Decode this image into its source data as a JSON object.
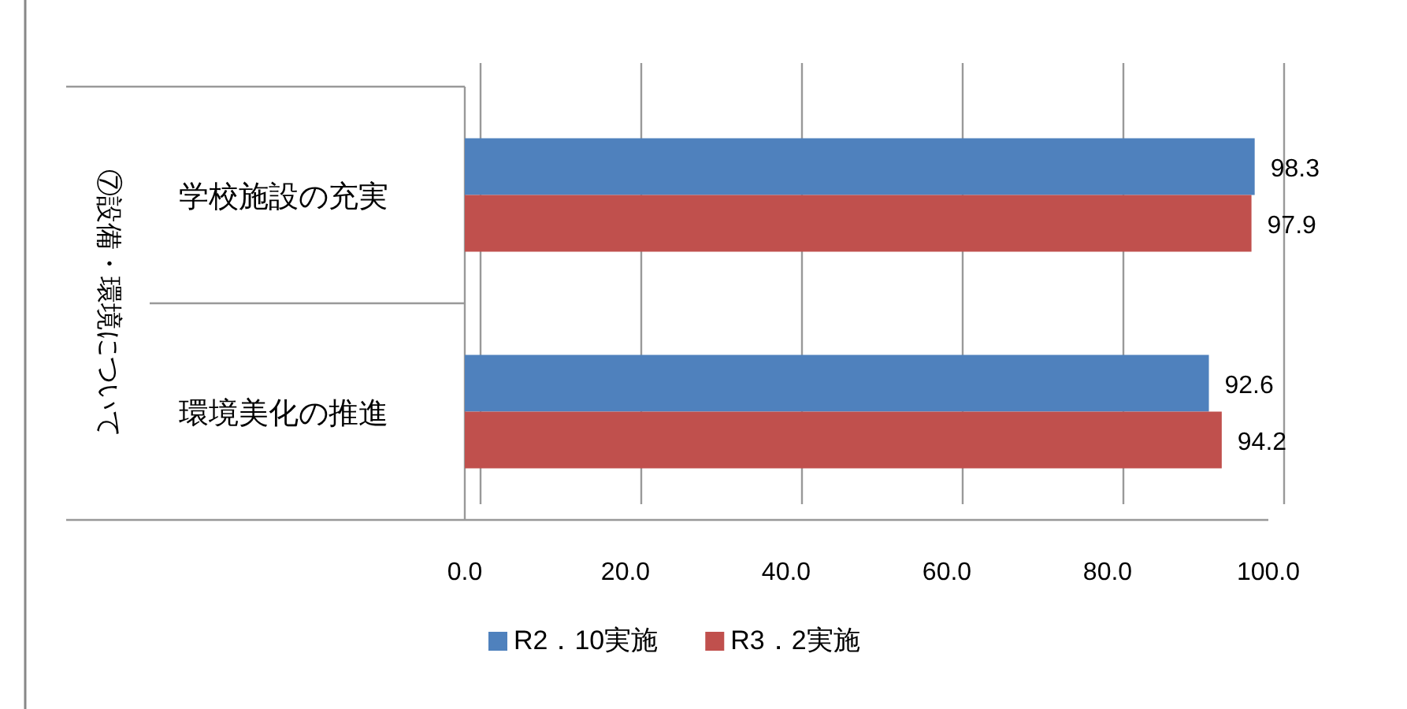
{
  "chart_data": {
    "type": "bar",
    "orientation": "horizontal",
    "ylabel": "⑦設備・環境について",
    "categories": [
      "学校施設の充実",
      "環境美化の推進"
    ],
    "series": [
      {
        "name": "R2．10実施",
        "color": "#4f81bd",
        "values": [
          98.3,
          92.6
        ]
      },
      {
        "name": "R3．2実施",
        "color": "#c0504d",
        "values": [
          97.9,
          94.2
        ]
      }
    ],
    "xlim": [
      0,
      100
    ],
    "xticks": [
      {
        "value": 0,
        "label": "0.0"
      },
      {
        "value": 20,
        "label": "20.0"
      },
      {
        "value": 40,
        "label": "40.0"
      },
      {
        "value": 60,
        "label": "60.0"
      },
      {
        "value": 80,
        "label": "80.0"
      },
      {
        "value": 100,
        "label": "100.0"
      }
    ],
    "grid": "x",
    "data_labels": true,
    "legend": "bottom"
  }
}
